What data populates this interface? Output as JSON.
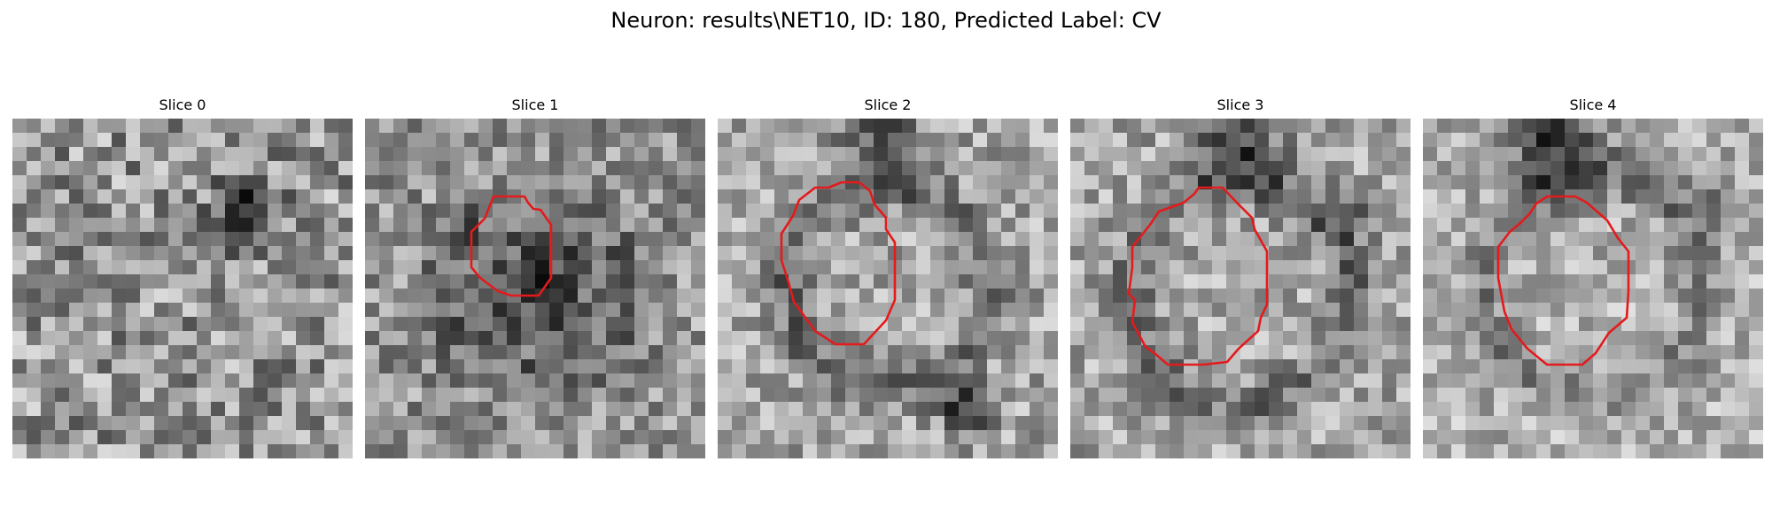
{
  "figure": {
    "title": "Neuron: results\\NET10, ID: 180, Predicted Label: CV"
  },
  "panels": [
    {
      "title": "Slice 0"
    },
    {
      "title": "Slice 1"
    },
    {
      "title": "Slice 2"
    },
    {
      "title": "Slice 3"
    },
    {
      "title": "Slice 4"
    }
  ],
  "colors": {
    "background": "#ffffff",
    "contour": "#e41a1c"
  }
}
